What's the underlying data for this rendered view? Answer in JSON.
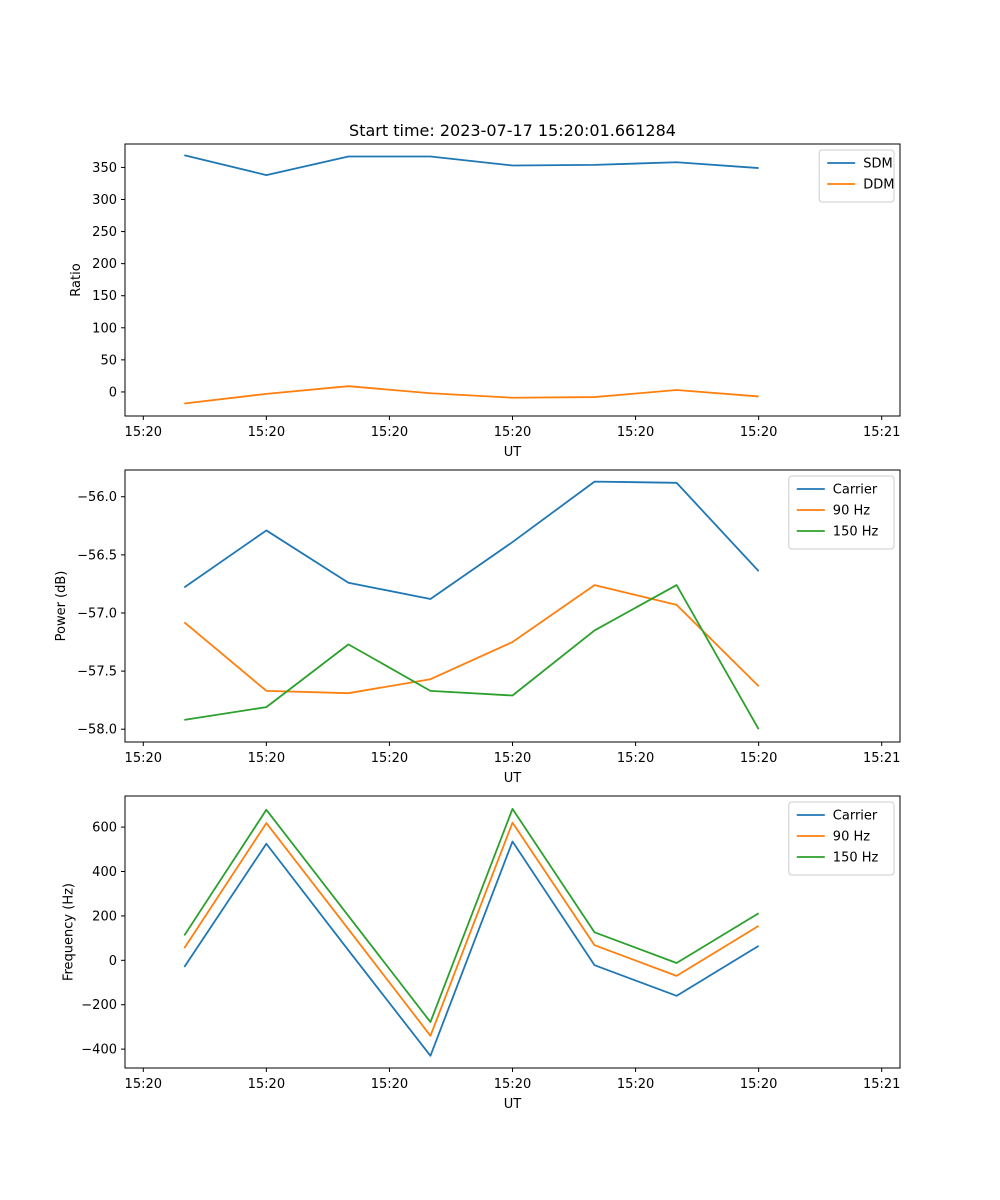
{
  "figure_title": "Start time: 2023-07-17 15:20:01.661284",
  "chart_data": [
    {
      "type": "line",
      "id": "ratio",
      "title": "Start time: 2023-07-17 15:20:01.661284",
      "xlabel": "UT",
      "ylabel": "Ratio",
      "x": [
        1,
        2,
        3,
        4,
        5,
        6,
        7,
        8
      ],
      "xlim": [
        0.277,
        9.723
      ],
      "xticks": [
        0.5,
        2,
        3.5,
        5,
        6.5,
        8,
        9.5
      ],
      "xtick_labels": [
        "15:20",
        "15:20",
        "15:20",
        "15:20",
        "15:20",
        "15:20",
        "15:21"
      ],
      "ylim": [
        -37.5,
        386.5
      ],
      "yticks": [
        0,
        50,
        100,
        150,
        200,
        250,
        300,
        350
      ],
      "ytick_labels": [
        "0",
        "50",
        "100",
        "150",
        "200",
        "250",
        "300",
        "350"
      ],
      "legend_loc": "top-right",
      "series": [
        {
          "name": "SDM",
          "color": "#1f77b4",
          "values": [
            369,
            338,
            367,
            367,
            353,
            354,
            358,
            349
          ]
        },
        {
          "name": "DDM",
          "color": "#ff7f0e",
          "values": [
            -18,
            -3,
            9,
            -2,
            -9,
            -8,
            3,
            -7
          ]
        }
      ]
    },
    {
      "type": "line",
      "id": "power",
      "title": "",
      "xlabel": "UT",
      "ylabel": "Power (dB)",
      "x": [
        1,
        2,
        3,
        4,
        5,
        6,
        7,
        8
      ],
      "xlim": [
        0.277,
        9.723
      ],
      "xticks": [
        0.5,
        2,
        3.5,
        5,
        6.5,
        8,
        9.5
      ],
      "xtick_labels": [
        "15:20",
        "15:20",
        "15:20",
        "15:20",
        "15:20",
        "15:20",
        "15:21"
      ],
      "ylim": [
        -58.11,
        -55.77
      ],
      "yticks": [
        -58.0,
        -57.5,
        -57.0,
        -56.5,
        -56.0
      ],
      "ytick_labels": [
        "−58.0",
        "−57.5",
        "−57.0",
        "−56.5",
        "−56.0"
      ],
      "legend_loc": "top-right",
      "series": [
        {
          "name": "Carrier",
          "color": "#1f77b4",
          "values": [
            -56.78,
            -56.29,
            -56.74,
            -56.88,
            -56.39,
            -55.87,
            -55.88,
            -56.64
          ]
        },
        {
          "name": "90 Hz",
          "color": "#ff7f0e",
          "values": [
            -57.08,
            -57.67,
            -57.69,
            -57.57,
            -57.25,
            -56.76,
            -56.93,
            -57.63
          ]
        },
        {
          "name": "150 Hz",
          "color": "#2ca02c",
          "values": [
            -57.92,
            -57.81,
            -57.27,
            -57.67,
            -57.71,
            -57.15,
            -56.76,
            -58.0
          ]
        }
      ]
    },
    {
      "type": "line",
      "id": "frequency",
      "title": "",
      "xlabel": "UT",
      "ylabel": "Frequency (Hz)",
      "x": [
        1,
        2,
        3,
        4,
        5,
        6,
        7,
        8
      ],
      "xlim": [
        0.277,
        9.723
      ],
      "xticks": [
        0.5,
        2,
        3.5,
        5,
        6.5,
        8,
        9.5
      ],
      "xtick_labels": [
        "15:20",
        "15:20",
        "15:20",
        "15:20",
        "15:20",
        "15:20",
        "15:21"
      ],
      "ylim": [
        -485,
        740
      ],
      "yticks": [
        -400,
        -200,
        0,
        200,
        400,
        600
      ],
      "ytick_labels": [
        "−400",
        "−200",
        "0",
        "200",
        "400",
        "600"
      ],
      "legend_loc": "top-right",
      "series": [
        {
          "name": "Carrier",
          "color": "#1f77b4",
          "values": [
            -30,
            525,
            45,
            -430,
            535,
            -22,
            -160,
            65
          ]
        },
        {
          "name": "90 Hz",
          "color": "#ff7f0e",
          "values": [
            55,
            618,
            140,
            -340,
            620,
            68,
            -70,
            155
          ]
        },
        {
          "name": "150 Hz",
          "color": "#2ca02c",
          "values": [
            112,
            678,
            200,
            -278,
            682,
            126,
            -12,
            212
          ]
        }
      ]
    }
  ]
}
